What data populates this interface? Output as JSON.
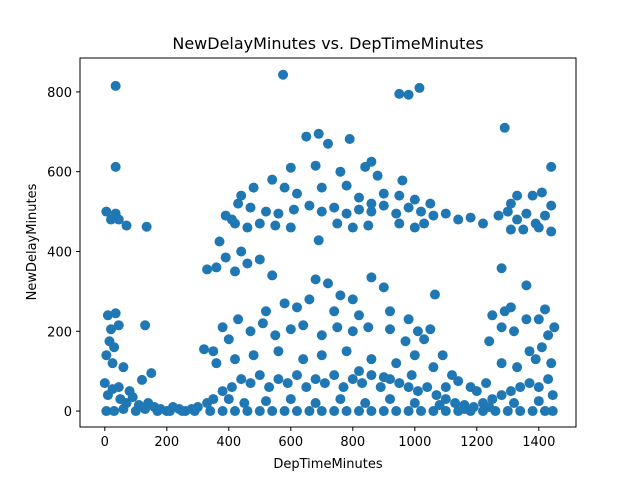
{
  "chart_data": {
    "type": "scatter",
    "title": "NewDelayMinutes vs. DepTimeMinutes",
    "xlabel": "DepTimeMinutes",
    "ylabel": "NewDelayMinutes",
    "xlim": [
      -80,
      1520
    ],
    "ylim": [
      -40,
      885
    ],
    "xticks": [
      0,
      200,
      400,
      600,
      800,
      1000,
      1200,
      1400
    ],
    "yticks": [
      0,
      200,
      400,
      600,
      800
    ],
    "grid": false,
    "marker_color": "#1f77b4",
    "series": [
      {
        "points": [
          [
            35,
            815
          ],
          [
            575,
            843
          ],
          [
            950,
            795
          ],
          [
            980,
            793
          ],
          [
            1015,
            810
          ],
          [
            1290,
            710
          ],
          [
            35,
            612
          ],
          [
            1440,
            612
          ],
          [
            650,
            688
          ],
          [
            690,
            695
          ],
          [
            720,
            670
          ],
          [
            790,
            682
          ],
          [
            840,
            612
          ],
          [
            860,
            625
          ],
          [
            880,
            590
          ],
          [
            600,
            610
          ],
          [
            680,
            615
          ],
          [
            760,
            600
          ],
          [
            960,
            578
          ],
          [
            5,
            500
          ],
          [
            20,
            480
          ],
          [
            35,
            495
          ],
          [
            45,
            480
          ],
          [
            70,
            465
          ],
          [
            135,
            462
          ],
          [
            390,
            490
          ],
          [
            430,
            520
          ],
          [
            470,
            510
          ],
          [
            520,
            500
          ],
          [
            560,
            495
          ],
          [
            610,
            505
          ],
          [
            660,
            515
          ],
          [
            700,
            500
          ],
          [
            740,
            510
          ],
          [
            780,
            495
          ],
          [
            820,
            505
          ],
          [
            860,
            500
          ],
          [
            900,
            515
          ],
          [
            940,
            495
          ],
          [
            980,
            510
          ],
          [
            1020,
            500
          ],
          [
            1060,
            490
          ],
          [
            1100,
            495
          ],
          [
            1140,
            480
          ],
          [
            1180,
            485
          ],
          [
            1220,
            470
          ],
          [
            1270,
            490
          ],
          [
            1300,
            500
          ],
          [
            1330,
            480
          ],
          [
            1360,
            495
          ],
          [
            1390,
            470
          ],
          [
            1420,
            490
          ],
          [
            1440,
            515
          ],
          [
            1310,
            520
          ],
          [
            1350,
            455
          ],
          [
            420,
            470
          ],
          [
            440,
            540
          ],
          [
            480,
            560
          ],
          [
            540,
            580
          ],
          [
            580,
            560
          ],
          [
            620,
            545
          ],
          [
            700,
            560
          ],
          [
            780,
            565
          ],
          [
            820,
            535
          ],
          [
            860,
            520
          ],
          [
            900,
            545
          ],
          [
            950,
            540
          ],
          [
            1000,
            530
          ],
          [
            1050,
            520
          ],
          [
            1380,
            540
          ],
          [
            1410,
            548
          ],
          [
            1330,
            540
          ],
          [
            410,
            480
          ],
          [
            460,
            460
          ],
          [
            500,
            470
          ],
          [
            550,
            465
          ],
          [
            600,
            460
          ],
          [
            690,
            428
          ],
          [
            750,
            470
          ],
          [
            800,
            460
          ],
          [
            850,
            465
          ],
          [
            950,
            470
          ],
          [
            1000,
            460
          ],
          [
            1030,
            470
          ],
          [
            1400,
            460
          ],
          [
            1440,
            450
          ],
          [
            1310,
            455
          ],
          [
            330,
            355
          ],
          [
            360,
            360
          ],
          [
            390,
            385
          ],
          [
            370,
            425
          ],
          [
            420,
            350
          ],
          [
            440,
            400
          ],
          [
            460,
            370
          ],
          [
            500,
            380
          ],
          [
            540,
            340
          ],
          [
            680,
            330
          ],
          [
            720,
            320
          ],
          [
            760,
            290
          ],
          [
            800,
            280
          ],
          [
            860,
            335
          ],
          [
            900,
            310
          ],
          [
            1065,
            292
          ],
          [
            1280,
            358
          ],
          [
            1360,
            315
          ],
          [
            1290,
            250
          ],
          [
            1310,
            260
          ],
          [
            1420,
            255
          ],
          [
            1400,
            230
          ],
          [
            1360,
            230
          ],
          [
            1250,
            240
          ],
          [
            520,
            250
          ],
          [
            580,
            270
          ],
          [
            620,
            260
          ],
          [
            660,
            280
          ],
          [
            740,
            250
          ],
          [
            820,
            240
          ],
          [
            920,
            250
          ],
          [
            980,
            230
          ],
          [
            1050,
            205
          ],
          [
            1010,
            200
          ],
          [
            1450,
            210
          ],
          [
            10,
            240
          ],
          [
            20,
            205
          ],
          [
            35,
            245
          ],
          [
            45,
            215
          ],
          [
            130,
            215
          ],
          [
            15,
            175
          ],
          [
            30,
            160
          ],
          [
            25,
            120
          ],
          [
            5,
            140
          ],
          [
            60,
            110
          ],
          [
            150,
            95
          ],
          [
            120,
            78
          ],
          [
            45,
            60
          ],
          [
            80,
            50
          ],
          [
            320,
            155
          ],
          [
            350,
            150
          ],
          [
            380,
            210
          ],
          [
            400,
            180
          ],
          [
            430,
            230
          ],
          [
            470,
            200
          ],
          [
            510,
            220
          ],
          [
            550,
            190
          ],
          [
            600,
            205
          ],
          [
            640,
            215
          ],
          [
            700,
            190
          ],
          [
            750,
            210
          ],
          [
            800,
            200
          ],
          [
            850,
            210
          ],
          [
            920,
            205
          ],
          [
            970,
            175
          ],
          [
            1030,
            180
          ],
          [
            1090,
            140
          ],
          [
            1240,
            175
          ],
          [
            1280,
            210
          ],
          [
            1320,
            200
          ],
          [
            1370,
            150
          ],
          [
            1410,
            160
          ],
          [
            1430,
            190
          ],
          [
            360,
            120
          ],
          [
            420,
            130
          ],
          [
            480,
            140
          ],
          [
            560,
            150
          ],
          [
            640,
            130
          ],
          [
            700,
            140
          ],
          [
            780,
            150
          ],
          [
            860,
            130
          ],
          [
            940,
            120
          ],
          [
            1000,
            140
          ],
          [
            1060,
            110
          ],
          [
            1120,
            90
          ],
          [
            1180,
            60
          ],
          [
            1230,
            70
          ],
          [
            1280,
            120
          ],
          [
            1330,
            110
          ],
          [
            1390,
            130
          ],
          [
            1440,
            120
          ],
          [
            1140,
            75
          ],
          [
            1200,
            50
          ],
          [
            1100,
            60
          ],
          [
            990,
            90
          ],
          [
            900,
            85
          ],
          [
            820,
            100
          ],
          [
            0,
            70
          ],
          [
            10,
            40
          ],
          [
            25,
            55
          ],
          [
            50,
            30
          ],
          [
            70,
            20
          ],
          [
            90,
            35
          ],
          [
            110,
            15
          ],
          [
            140,
            20
          ],
          [
            160,
            10
          ],
          [
            180,
            5
          ],
          [
            200,
            0
          ],
          [
            220,
            10
          ],
          [
            240,
            5
          ],
          [
            260,
            0
          ],
          [
            280,
            5
          ],
          [
            300,
            10
          ],
          [
            330,
            20
          ],
          [
            350,
            30
          ],
          [
            380,
            50
          ],
          [
            410,
            60
          ],
          [
            440,
            80
          ],
          [
            470,
            70
          ],
          [
            500,
            90
          ],
          [
            530,
            60
          ],
          [
            560,
            80
          ],
          [
            590,
            70
          ],
          [
            620,
            90
          ],
          [
            650,
            60
          ],
          [
            680,
            80
          ],
          [
            710,
            70
          ],
          [
            740,
            90
          ],
          [
            770,
            60
          ],
          [
            800,
            80
          ],
          [
            830,
            70
          ],
          [
            860,
            90
          ],
          [
            890,
            60
          ],
          [
            920,
            80
          ],
          [
            950,
            70
          ],
          [
            980,
            60
          ],
          [
            1010,
            50
          ],
          [
            1040,
            60
          ],
          [
            1070,
            40
          ],
          [
            1100,
            30
          ],
          [
            1130,
            20
          ],
          [
            1160,
            15
          ],
          [
            1190,
            10
          ],
          [
            1220,
            20
          ],
          [
            1250,
            30
          ],
          [
            1280,
            40
          ],
          [
            1310,
            50
          ],
          [
            1340,
            60
          ],
          [
            1370,
            70
          ],
          [
            1400,
            60
          ],
          [
            1430,
            80
          ],
          [
            1445,
            40
          ],
          [
            5,
            0
          ],
          [
            30,
            0
          ],
          [
            60,
            5
          ],
          [
            100,
            0
          ],
          [
            130,
            5
          ],
          [
            170,
            0
          ],
          [
            210,
            0
          ],
          [
            250,
            0
          ],
          [
            290,
            0
          ],
          [
            340,
            0
          ],
          [
            380,
            0
          ],
          [
            420,
            0
          ],
          [
            460,
            0
          ],
          [
            500,
            0
          ],
          [
            540,
            0
          ],
          [
            580,
            0
          ],
          [
            620,
            0
          ],
          [
            660,
            0
          ],
          [
            700,
            0
          ],
          [
            740,
            0
          ],
          [
            780,
            0
          ],
          [
            820,
            0
          ],
          [
            860,
            0
          ],
          [
            900,
            0
          ],
          [
            940,
            0
          ],
          [
            980,
            0
          ],
          [
            1020,
            0
          ],
          [
            1060,
            0
          ],
          [
            1100,
            0
          ],
          [
            1140,
            0
          ],
          [
            1180,
            0
          ],
          [
            1220,
            0
          ],
          [
            1260,
            0
          ],
          [
            1300,
            0
          ],
          [
            1340,
            0
          ],
          [
            1380,
            0
          ],
          [
            1420,
            0
          ],
          [
            1445,
            0
          ],
          [
            400,
            30
          ],
          [
            450,
            20
          ],
          [
            520,
            25
          ],
          [
            600,
            30
          ],
          [
            680,
            20
          ],
          [
            760,
            30
          ],
          [
            840,
            20
          ],
          [
            920,
            30
          ],
          [
            1000,
            20
          ],
          [
            1080,
            15
          ],
          [
            1160,
            5
          ],
          [
            1240,
            10
          ],
          [
            1320,
            20
          ],
          [
            1400,
            25
          ]
        ]
      }
    ]
  }
}
